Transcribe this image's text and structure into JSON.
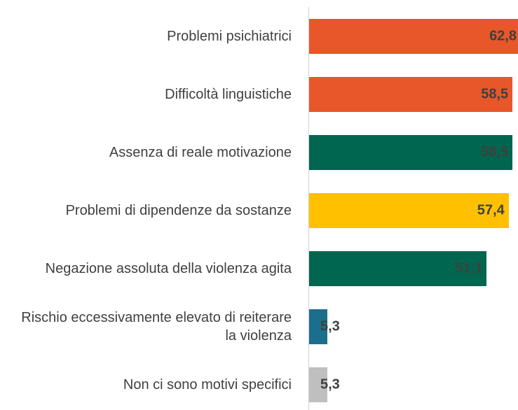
{
  "chart_data": {
    "type": "bar",
    "categories": [
      "Problemi psichiatrici",
      "Difficoltà linguistiche",
      "Assenza di reale motivazione",
      "Problemi di dipendenze da sostanze",
      "Negazione assoluta della violenza agita",
      "Rischio eccessivamente elevato di reiterare la violenza",
      "Non ci sono motivi specifici"
    ],
    "values": [
      62.8,
      58.5,
      58.5,
      57.4,
      51.1,
      5.3,
      5.3
    ],
    "value_labels": [
      "62,8",
      "58,5",
      "58,5",
      "57,4",
      "51,1",
      "5,3",
      "5,3"
    ],
    "colors": [
      "#e8572a",
      "#e8572a",
      "#00664f",
      "#ffc000",
      "#00664f",
      "#1b6f8c",
      "#bfbfbf"
    ]
  }
}
